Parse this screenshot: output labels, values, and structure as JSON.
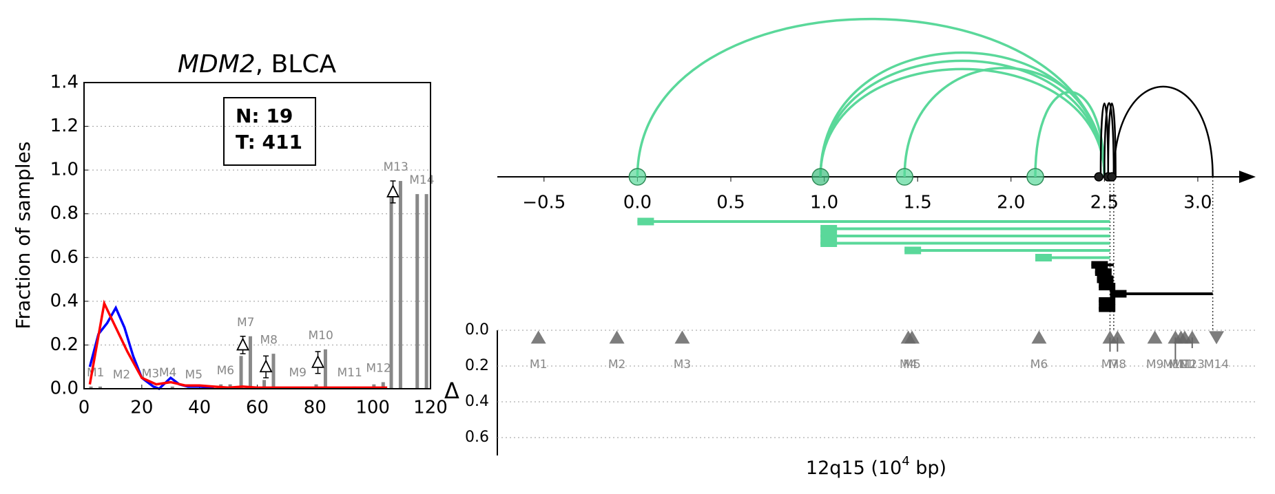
{
  "chart_data": [
    {
      "type": "line",
      "title": [
        "MDM2",
        ", BLCA"
      ],
      "ylabel": "Fraction of samples",
      "xlim": [
        0,
        120
      ],
      "xticks": [
        0,
        20,
        40,
        60,
        80,
        100,
        120
      ],
      "ylim": [
        0,
        1.4
      ],
      "yticks": [
        {
          "value": 0,
          "label": "0.0"
        },
        0.2,
        0.4,
        0.6,
        0.8,
        {
          "value": 1,
          "label": "1.0"
        },
        1.2,
        1.4
      ],
      "grid": true,
      "series": [
        {
          "name": "N: 19",
          "color": "#0000ff",
          "x": [
            2,
            5,
            8,
            11,
            14,
            17,
            20,
            24,
            26,
            30,
            33,
            36,
            40,
            45
          ],
          "values": [
            0.1,
            0.25,
            0.3,
            0.37,
            0.28,
            0.15,
            0.05,
            0.01,
            0,
            0.05,
            0.02,
            0.01,
            0.01,
            0.005
          ]
        },
        {
          "name": "T: 411",
          "color": "#ff0000",
          "x": [
            2,
            7,
            11,
            15,
            20,
            25,
            30,
            35,
            40,
            45,
            50,
            55,
            60,
            70,
            80,
            90,
            100,
            105
          ],
          "values": [
            0.02,
            0.39,
            0.28,
            0.17,
            0.05,
            0.02,
            0.03,
            0.015,
            0.015,
            0.01,
            0.005,
            0.01,
            0.005,
            0.005,
            0.005,
            0.005,
            0.005,
            0.005
          ]
        }
      ],
      "bar_color": "#888888",
      "markers": [
        {
          "label": "M1",
          "x": 4,
          "values": [
            0.01,
            0.01
          ]
        },
        {
          "label": "M2",
          "x": 13,
          "values": [
            0,
            0
          ]
        },
        {
          "label": "M3",
          "x": 23,
          "values": [
            0,
            0.005
          ]
        },
        {
          "label": "M4",
          "x": 29,
          "values": [
            0,
            0.01
          ]
        },
        {
          "label": "M5",
          "x": 38,
          "values": [
            0,
            0
          ]
        },
        {
          "label": "M6",
          "x": 49,
          "values": [
            0.02,
            0.02
          ]
        },
        {
          "label": "M7",
          "x": 56,
          "values": [
            0.15,
            0.24
          ]
        },
        {
          "label": "M8",
          "x": 64,
          "values": [
            0.04,
            0.16
          ]
        },
        {
          "label": "M9",
          "x": 74,
          "values": [
            0,
            0.01
          ]
        },
        {
          "label": "M10",
          "x": 82,
          "values": [
            0.02,
            0.18
          ]
        },
        {
          "label": "M11",
          "x": 92,
          "values": [
            0,
            0.01
          ]
        },
        {
          "label": "M12",
          "x": 102,
          "values": [
            0.02,
            0.03
          ]
        },
        {
          "label": "M13",
          "x": 108,
          "values": [
            0.88,
            0.95
          ]
        },
        {
          "label": "M14",
          "x": 117,
          "values": [
            0.89,
            0.89
          ]
        }
      ],
      "deltas": {
        "x": [
          55,
          63,
          81,
          107
        ],
        "values": [
          0.2,
          0.1,
          0.12,
          0.9
        ],
        "errors": [
          0.04,
          0.05,
          0.05,
          0.05
        ]
      }
    },
    {
      "type": "arc",
      "xlim": [
        -0.75,
        3.31
      ],
      "xticks": [
        {
          "value": -0.5,
          "label": "−0.5"
        },
        {
          "value": 0,
          "label": "0.0"
        },
        0.5,
        {
          "value": 1,
          "label": "1.0"
        },
        1.5,
        {
          "value": 2,
          "label": "2.0"
        },
        2.5,
        {
          "value": 3,
          "label": "3.0"
        }
      ],
      "nodes": [
        {
          "x": 0.0,
          "color": "#5ad89a"
        },
        {
          "x": 0.98,
          "color": "#3fbf7f"
        },
        {
          "x": 1.43,
          "color": "#5ad89a"
        },
        {
          "x": 2.13,
          "color": "#5ad89a"
        },
        {
          "x": 2.47,
          "color": "#222222"
        },
        {
          "x": 2.52,
          "color": "#222222"
        },
        {
          "x": 2.54,
          "color": "#222222"
        }
      ],
      "arcs": [
        {
          "from": 0.0,
          "to": 2.5,
          "color": "#5ad89a"
        },
        {
          "from": 0.98,
          "to": 2.5,
          "color": "#5ad89a"
        },
        {
          "from": 0.98,
          "to": 2.5,
          "color": "#5ad89a"
        },
        {
          "from": 0.98,
          "to": 2.5,
          "color": "#5ad89a"
        },
        {
          "from": 1.43,
          "to": 2.5,
          "color": "#5ad89a"
        },
        {
          "from": 2.13,
          "to": 2.5,
          "color": "#5ad89a"
        },
        {
          "from": 2.48,
          "to": 2.52,
          "color": "#000000"
        },
        {
          "from": 2.5,
          "to": 2.55,
          "color": "#000000"
        },
        {
          "from": 2.52,
          "to": 2.56,
          "color": "#000000"
        },
        {
          "from": 2.55,
          "to": 3.08,
          "color": "#000000"
        }
      ],
      "segments": [
        {
          "start": 0.0,
          "end": 2.53,
          "color": "#5ad89a"
        },
        {
          "start": 0.98,
          "end": 2.53,
          "color": "#5ad89a"
        },
        {
          "start": 0.98,
          "end": 2.53,
          "color": "#5ad89a"
        },
        {
          "start": 0.98,
          "end": 2.53,
          "color": "#5ad89a"
        },
        {
          "start": 1.43,
          "end": 2.53,
          "color": "#5ad89a"
        },
        {
          "start": 2.13,
          "end": 2.53,
          "color": "#5ad89a"
        },
        {
          "start": 2.43,
          "end": 2.55,
          "color": "#000000"
        },
        {
          "start": 2.45,
          "end": 2.53,
          "color": "#000000"
        },
        {
          "start": 2.46,
          "end": 2.53,
          "color": "#000000"
        },
        {
          "start": 2.47,
          "end": 2.55,
          "color": "#000000"
        },
        {
          "start": 2.53,
          "end": 3.08,
          "color": "#000000"
        },
        {
          "start": 2.47,
          "end": 2.55,
          "color": "#000000"
        },
        {
          "start": 2.47,
          "end": 2.53,
          "color": "#000000"
        }
      ],
      "vlines": [
        2.53,
        2.55,
        3.08
      ]
    },
    {
      "type": "scatter",
      "ylabel": "Δ",
      "xlabel": [
        "12q15 (10",
        "4",
        " bp)"
      ],
      "xlim": [
        -0.75,
        3.31
      ],
      "ylim": [
        0,
        0.7
      ],
      "yticks": [
        {
          "value": 0,
          "label": "0.0"
        },
        0.2,
        0.4,
        0.6
      ],
      "grid": true,
      "color": "#666666",
      "markers": [
        {
          "label": "M1",
          "x": -0.53,
          "delta": 0.04,
          "direction": "up",
          "error": null
        },
        {
          "label": "M2",
          "x": -0.11,
          "delta": 0.04,
          "direction": "up",
          "error": null
        },
        {
          "label": "M3",
          "x": 0.24,
          "delta": 0.04,
          "direction": "up",
          "error": null
        },
        {
          "label": "M4",
          "x": 1.45,
          "delta": 0.04,
          "direction": "up",
          "error": null
        },
        {
          "label": "M5",
          "x": 1.47,
          "delta": 0.04,
          "direction": "up",
          "error": null
        },
        {
          "label": "M6",
          "x": 2.15,
          "delta": 0.04,
          "direction": "up",
          "error": null
        },
        {
          "label": "M7",
          "x": 2.53,
          "delta": 0.04,
          "direction": "up",
          "error": 0.08
        },
        {
          "label": "M8",
          "x": 2.57,
          "delta": 0.04,
          "direction": "up",
          "error": 0.08
        },
        {
          "label": "M9",
          "x": 2.77,
          "delta": 0.04,
          "direction": "up",
          "error": null
        },
        {
          "label": "M10",
          "x": 2.88,
          "delta": 0.04,
          "direction": "up",
          "error": 0.14
        },
        {
          "label": "M11",
          "x": 2.91,
          "delta": 0.04,
          "direction": "up",
          "error": null
        },
        {
          "label": "M12",
          "x": 2.93,
          "delta": 0.04,
          "direction": "up",
          "error": null
        },
        {
          "label": "M13",
          "x": 2.97,
          "delta": 0.04,
          "direction": "up",
          "error": 0.06
        },
        {
          "label": "M14",
          "x": 3.1,
          "delta": 0.04,
          "direction": "down",
          "error": null
        }
      ]
    }
  ]
}
